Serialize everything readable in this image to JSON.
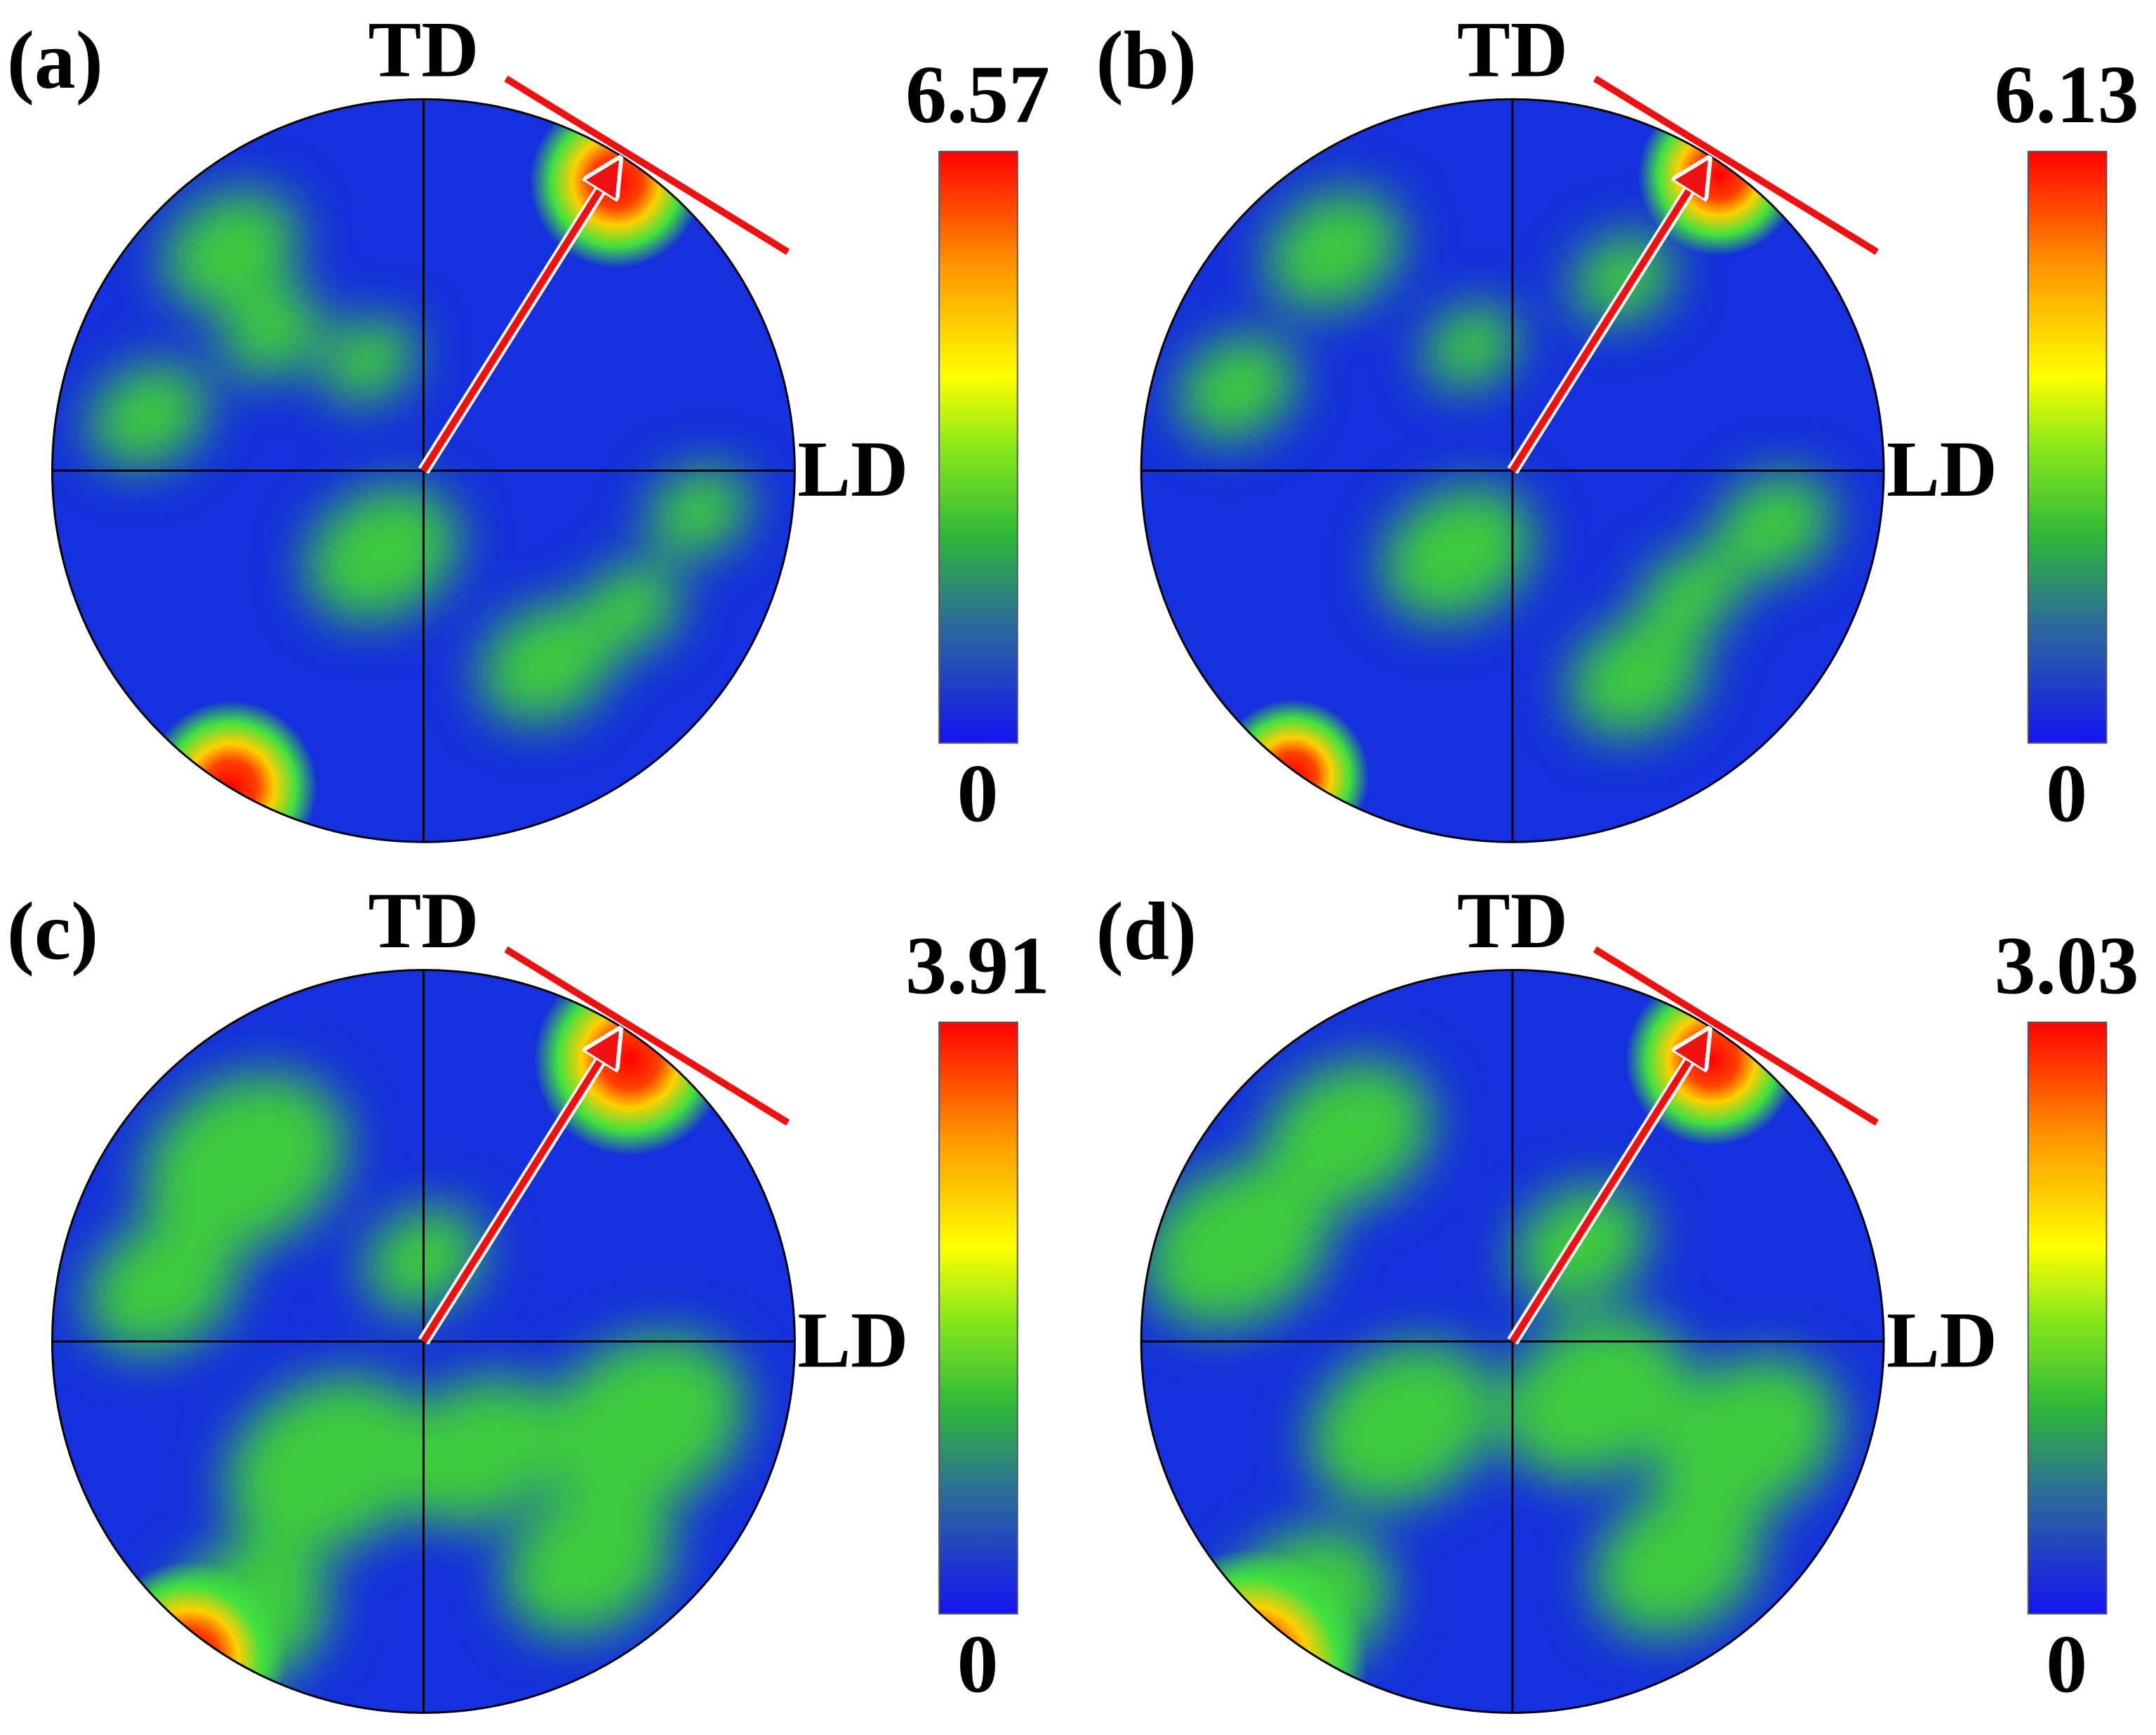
{
  "panels": [
    {
      "label": "(a)",
      "top_axis": "TD",
      "right_axis": "LD",
      "scale_max": 6.57,
      "scale_min": 0
    },
    {
      "label": "(b)",
      "top_axis": "TD",
      "right_axis": "LD",
      "scale_max": 6.13,
      "scale_min": 0
    },
    {
      "label": "(c)",
      "top_axis": "TD",
      "right_axis": "LD",
      "scale_max": 3.91,
      "scale_min": 0
    },
    {
      "label": "(d)",
      "top_axis": "TD",
      "right_axis": "LD",
      "scale_max": 3.03,
      "scale_min": 0
    }
  ]
}
